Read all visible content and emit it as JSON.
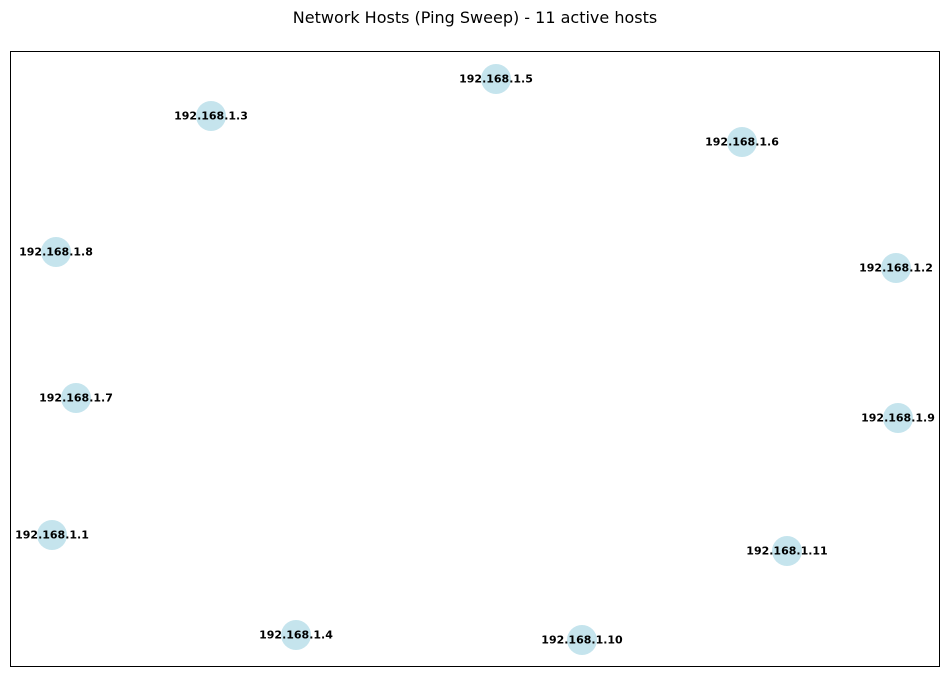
{
  "title": "Network Hosts (Ping Sweep) - 11 active hosts",
  "colors": {
    "node_fill": "#add8e6",
    "label_text": "#000000",
    "frame_border": "#000000"
  },
  "nodes": [
    {
      "id": "n5",
      "label": "192.168.1.5"
    },
    {
      "id": "n3",
      "label": "192.168.1.3"
    },
    {
      "id": "n6",
      "label": "192.168.1.6"
    },
    {
      "id": "n8",
      "label": "192.168.1.8"
    },
    {
      "id": "n2",
      "label": "192.168.1.2"
    },
    {
      "id": "n7",
      "label": "192.168.1.7"
    },
    {
      "id": "n9",
      "label": "192.168.1.9"
    },
    {
      "id": "n1",
      "label": "192.168.1.1"
    },
    {
      "id": "n11",
      "label": "192.168.1.11"
    },
    {
      "id": "n4",
      "label": "192.168.1.4"
    },
    {
      "id": "n10",
      "label": "192.168.1.10"
    }
  ]
}
